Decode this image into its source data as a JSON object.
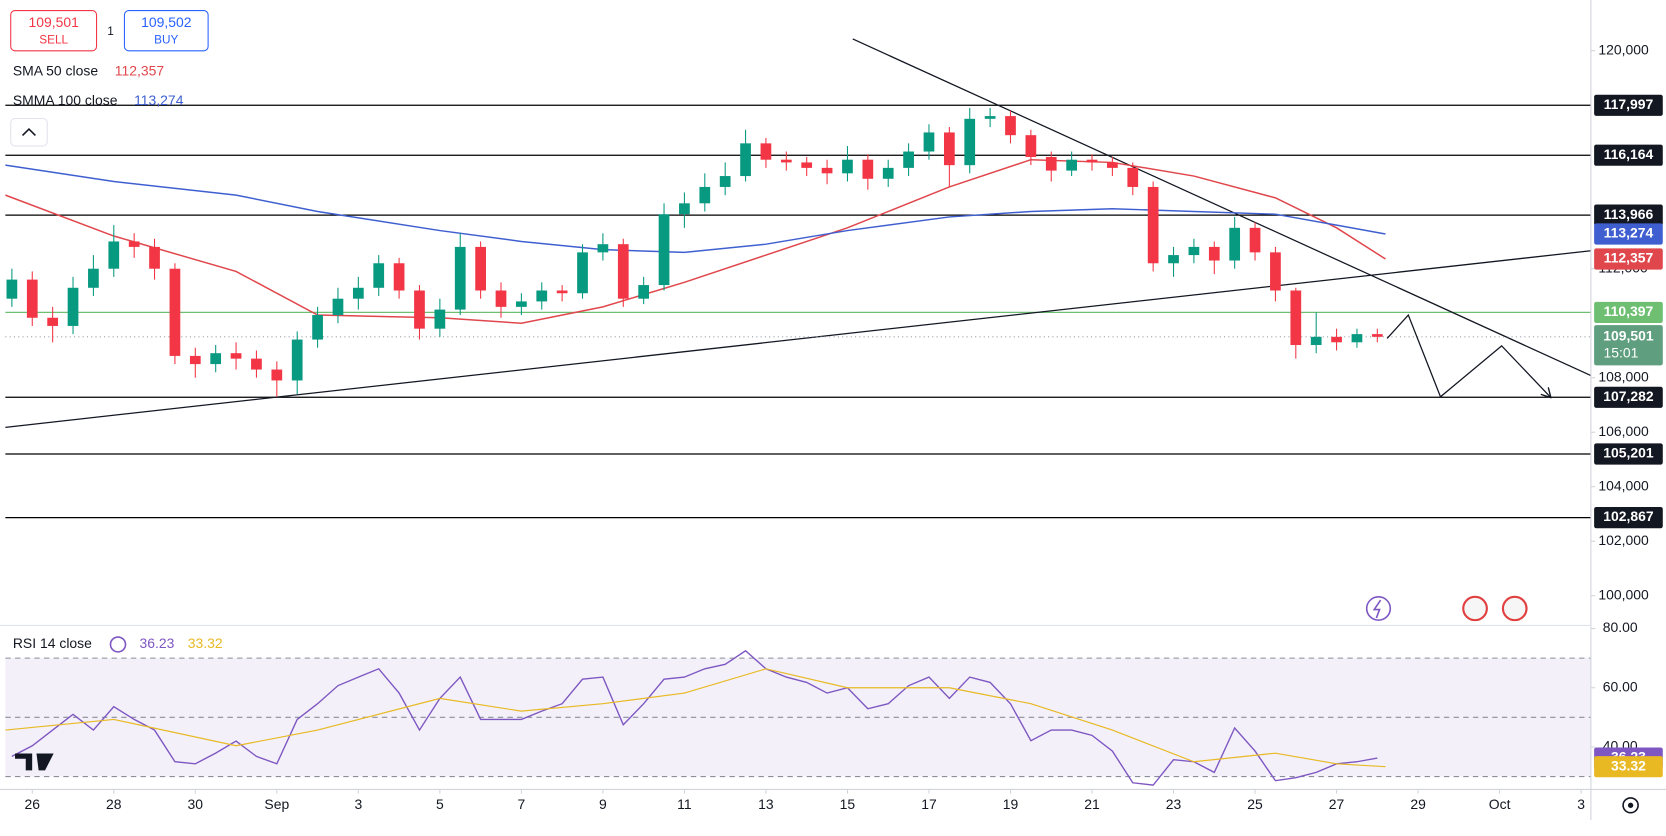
{
  "ui": {
    "sell_price": "109,501",
    "sell_label": "SELL",
    "buy_price": "109,502",
    "buy_label": "BUY",
    "spread": "1"
  },
  "chart_data": [
    {
      "type": "candlestick",
      "xlim": [
        -0.66,
        38.24
      ],
      "ylim": [
        98950,
        121860
      ],
      "xticks": [
        {
          "value": 0,
          "label": "26"
        },
        {
          "value": 2,
          "label": "28"
        },
        {
          "value": 4,
          "label": "30"
        },
        {
          "value": 6,
          "label": "Sep"
        },
        {
          "value": 8,
          "label": "3"
        },
        {
          "value": 10,
          "label": "5"
        },
        {
          "value": 12,
          "label": "7"
        },
        {
          "value": 14,
          "label": "9"
        },
        {
          "value": 16,
          "label": "11"
        },
        {
          "value": 18,
          "label": "13"
        },
        {
          "value": 20,
          "label": "15"
        },
        {
          "value": 22,
          "label": "17"
        },
        {
          "value": 24,
          "label": "19"
        },
        {
          "value": 26,
          "label": "21"
        },
        {
          "value": 28,
          "label": "23"
        },
        {
          "value": 30,
          "label": "25"
        },
        {
          "value": 32,
          "label": "27"
        },
        {
          "value": 34,
          "label": "29"
        },
        {
          "value": 36,
          "label": "Oct"
        },
        {
          "value": 38,
          "label": "3"
        }
      ],
      "yticks": [
        {
          "value": 100000,
          "label": "100,000"
        },
        {
          "value": 102000,
          "label": "102,000"
        },
        {
          "value": 104000,
          "label": "104,000"
        },
        {
          "value": 106000,
          "label": "106,000"
        },
        {
          "value": 108000,
          "label": "108,000"
        },
        {
          "value": 112000,
          "label": "112,000"
        },
        {
          "value": 120000,
          "label": "120,000"
        }
      ],
      "grid": false,
      "up_color": "#089981",
      "down_color": "#f23645",
      "x": [
        -0.5,
        0,
        0.5,
        1,
        1.5,
        2,
        2.5,
        3,
        3.5,
        4,
        4.5,
        5,
        5.5,
        6,
        6.5,
        7,
        7.5,
        8,
        8.5,
        9,
        9.5,
        10,
        10.5,
        11,
        11.5,
        12,
        12.5,
        13,
        13.5,
        14,
        14.5,
        15,
        15.5,
        16,
        16.5,
        17,
        17.5,
        18,
        18.5,
        19,
        19.5,
        20,
        20.5,
        21,
        21.5,
        22,
        22.5,
        23,
        23.5,
        24,
        24.5,
        25,
        25.5,
        26,
        26.5,
        27,
        27.5,
        28,
        28.5,
        29,
        29.5,
        30,
        30.5,
        31,
        31.5,
        32,
        32.5,
        33
      ],
      "open": [
        110900,
        111600,
        110200,
        109900,
        111300,
        112000,
        113000,
        112800,
        112000,
        108800,
        108500,
        108900,
        108700,
        108300,
        107900,
        109400,
        110300,
        110900,
        111300,
        112200,
        111200,
        109800,
        110500,
        112800,
        111200,
        110600,
        110800,
        111200,
        111100,
        112600,
        112900,
        110900,
        111400,
        114000,
        114400,
        115000,
        115400,
        116600,
        116000,
        115900,
        115700,
        115500,
        116000,
        115300,
        115700,
        116300,
        117000,
        115800,
        117500,
        117600,
        116900,
        116100,
        115600,
        116000,
        115900,
        115700,
        115000,
        112200,
        112500,
        112800,
        112300,
        113500,
        112600,
        111200,
        109200,
        109500,
        109300,
        109600
      ],
      "high": [
        112000,
        111900,
        110600,
        111700,
        112500,
        113600,
        113300,
        113100,
        112200,
        109100,
        109200,
        109300,
        109000,
        108600,
        109700,
        110600,
        111300,
        111700,
        112500,
        112400,
        111400,
        110900,
        113300,
        113000,
        111500,
        111100,
        111500,
        111400,
        112900,
        113300,
        113100,
        111700,
        114400,
        114800,
        115500,
        115900,
        117100,
        116800,
        116300,
        116100,
        116000,
        116500,
        116200,
        116000,
        116600,
        117300,
        117200,
        117900,
        117900,
        117800,
        117100,
        116300,
        116300,
        116200,
        116100,
        115900,
        115200,
        112800,
        113100,
        113000,
        113900,
        113700,
        112800,
        111300,
        110400,
        109800,
        109800,
        109800
      ],
      "low": [
        110600,
        109900,
        109300,
        109600,
        111000,
        111700,
        112400,
        111600,
        108500,
        108000,
        108200,
        108300,
        108000,
        107300,
        107400,
        109100,
        110000,
        110500,
        111000,
        110900,
        109400,
        109500,
        110300,
        110900,
        110200,
        110300,
        110500,
        110800,
        110900,
        112300,
        110600,
        110700,
        111200,
        113500,
        114100,
        114700,
        115200,
        115700,
        115600,
        115400,
        115100,
        115200,
        114900,
        115000,
        115400,
        116000,
        115000,
        115500,
        117200,
        116600,
        115800,
        115200,
        115400,
        115600,
        115400,
        114700,
        111900,
        111700,
        112200,
        111800,
        112000,
        112300,
        110800,
        108700,
        108900,
        109000,
        109100,
        109300
      ],
      "close": [
        111600,
        110200,
        109900,
        111300,
        112000,
        113000,
        112800,
        112000,
        108800,
        108500,
        108900,
        108700,
        108300,
        107900,
        109400,
        110300,
        110900,
        111300,
        112200,
        111200,
        109800,
        110500,
        112800,
        111200,
        110600,
        110800,
        111200,
        111100,
        112600,
        112900,
        110900,
        111400,
        114000,
        114400,
        115000,
        115400,
        116600,
        116000,
        115900,
        115700,
        115500,
        116000,
        115300,
        115700,
        116300,
        117000,
        115800,
        117500,
        117600,
        116900,
        116100,
        115600,
        116000,
        115900,
        115700,
        115000,
        112200,
        112500,
        112800,
        112300,
        113500,
        112600,
        111200,
        109200,
        109500,
        109300,
        109600,
        109501
      ],
      "last_price": {
        "value": 109501,
        "label": "109,501",
        "countdown": "15:01",
        "color": "#5f9e7e"
      },
      "series": [
        {
          "name": "SMA 50 close",
          "color": "#e0474c",
          "last_label": "112,357",
          "x": [
            -0.66,
            2,
            5,
            7,
            10,
            12,
            14,
            16,
            18,
            20,
            22.5,
            24.5,
            26.5,
            28.5,
            30.5,
            32,
            33.2
          ],
          "values": [
            114700,
            113200,
            111900,
            110300,
            110200,
            110000,
            110600,
            111500,
            112500,
            113500,
            115000,
            116000,
            115900,
            115400,
            114600,
            113500,
            112357
          ]
        },
        {
          "name": "SMMA 100 close",
          "color": "#3f5fd0",
          "last_label": "113,274",
          "x": [
            -0.66,
            2,
            5,
            7,
            10,
            12,
            14,
            16,
            18,
            20,
            22.5,
            24.5,
            26.5,
            28.5,
            30.5,
            32,
            33.2
          ],
          "values": [
            115800,
            115200,
            114700,
            114100,
            113400,
            113000,
            112700,
            112600,
            112900,
            113400,
            113900,
            114100,
            114200,
            114100,
            114000,
            113600,
            113274
          ]
        }
      ],
      "levels": [
        {
          "value": 117997,
          "label": "117,997",
          "color": "#000000"
        },
        {
          "value": 116164,
          "label": "116,164",
          "color": "#000000"
        },
        {
          "value": 113966,
          "label": "113,966",
          "color": "#000000"
        },
        {
          "value": 110397,
          "label": "110,397",
          "color": "#6fbf73"
        },
        {
          "value": 107282,
          "label": "107,282",
          "color": "#000000"
        },
        {
          "value": 105201,
          "label": "105,201",
          "color": "#000000"
        },
        {
          "value": 102867,
          "label": "102,867",
          "color": "#000000"
        }
      ],
      "trendlines": [
        {
          "x": [
            20.13,
            38.24
          ],
          "y": [
            120430,
            108080
          ]
        },
        {
          "x": [
            -0.66,
            38.24
          ],
          "y": [
            106180,
            112660
          ]
        }
      ],
      "projection": {
        "x": [
          33.24,
          33.76,
          34.55,
          36.05,
          37.24
        ],
        "y": [
          109440,
          110300,
          107300,
          109170,
          107300
        ]
      }
    },
    {
      "type": "rsi",
      "legend": "RSI 14 close",
      "xlim": [
        -0.66,
        38.24
      ],
      "ylim": [
        26,
        80.7
      ],
      "yticks": [
        {
          "value": 40,
          "label": "40.00"
        },
        {
          "value": 60,
          "label": "60.00"
        },
        {
          "value": 80,
          "label": "80.00"
        }
      ],
      "levels": [
        70,
        50,
        30
      ],
      "band_color": "#7e57c2",
      "series": [
        {
          "color": "#7e57c2",
          "last_label": "36.23",
          "x": [
            -0.5,
            0,
            0.5,
            1,
            1.5,
            2,
            2.5,
            3,
            3.5,
            4,
            4.5,
            5,
            5.5,
            6,
            6.5,
            7,
            7.5,
            8,
            8.5,
            9,
            9.5,
            10,
            10.5,
            11,
            11.5,
            12,
            12.5,
            13,
            13.5,
            14,
            14.5,
            15,
            15.5,
            16,
            16.5,
            17,
            17.5,
            18,
            18.5,
            19,
            19.5,
            20,
            20.5,
            21,
            21.5,
            22,
            22.5,
            23,
            23.5,
            24,
            24.5,
            25,
            25.5,
            26,
            26.5,
            27,
            27.5,
            28,
            28.5,
            29,
            29.5,
            30,
            30.5,
            31,
            31.5,
            32,
            32.5,
            33
          ],
          "values": [
            36.8,
            40.4,
            45.7,
            51,
            45.7,
            53.6,
            49.3,
            45.7,
            35,
            34.3,
            37.9,
            42,
            36.8,
            34.3,
            49.3,
            54.6,
            60.7,
            63.6,
            66.4,
            58.2,
            45.7,
            56.4,
            63.6,
            49.3,
            49.3,
            49.3,
            52.1,
            54.6,
            62.9,
            63.6,
            47.5,
            54.6,
            62.9,
            63.6,
            66.4,
            67.9,
            72.5,
            66.4,
            63.6,
            61.8,
            58.2,
            60,
            52.9,
            54.6,
            60.7,
            63.6,
            56.4,
            63.6,
            61.8,
            54.6,
            42.1,
            45.7,
            45.7,
            43.9,
            38.6,
            27.9,
            27.1,
            35.7,
            35,
            31.4,
            46.4,
            38.6,
            28.6,
            29.6,
            31.4,
            34.3,
            35,
            36.23
          ]
        },
        {
          "color": "#e8b923",
          "last_label": "33.32",
          "x": [
            -0.66,
            2,
            5,
            7,
            10,
            12,
            14,
            16,
            18,
            20,
            22.5,
            24.5,
            26.5,
            28.5,
            30.5,
            32,
            33.2
          ],
          "values": [
            45.7,
            49.3,
            40.4,
            45.7,
            56.4,
            52.1,
            54.6,
            58.2,
            66.4,
            60,
            60,
            54.6,
            45.7,
            35,
            37.9,
            34.3,
            33.32
          ]
        }
      ]
    }
  ]
}
